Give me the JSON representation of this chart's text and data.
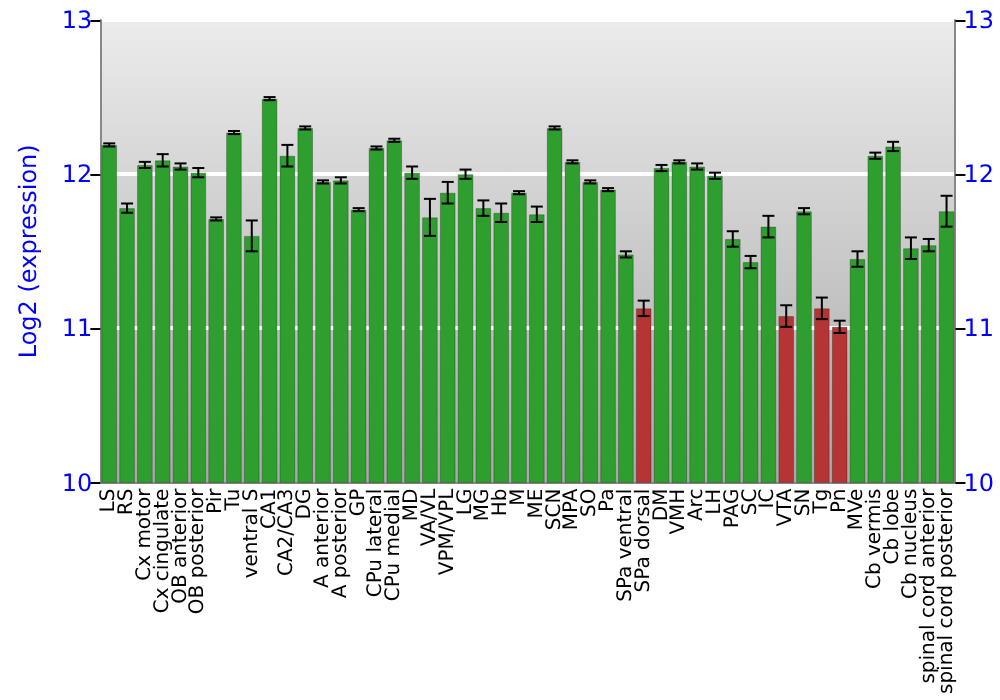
{
  "chart_data": {
    "type": "bar",
    "ylabel": "Log2 (expression)",
    "categories": [
      "LS",
      "RS",
      "Cx motor",
      "Cx cingulate",
      "OB anterior",
      "OB posterior",
      "Pir",
      "Tu",
      "ventral S",
      "CA1",
      "CA2/CA3",
      "DG",
      "A anterior",
      "A posterior",
      "GP",
      "CPu lateral",
      "CPu medial",
      "MD",
      "VA/VL",
      "VPM/VPL",
      "LG",
      "MG",
      "Hb",
      "M",
      "ME",
      "SCN",
      "MPA",
      "SO",
      "Pa",
      "SPa ventral",
      "SPa dorsal",
      "DM",
      "VMH",
      "Arc",
      "LH",
      "PAG",
      "SC",
      "IC",
      "VTA",
      "SN",
      "Tg",
      "Pn",
      "MVe",
      "Cb vermis",
      "Cb lobe",
      "Cb nucleus",
      "spinal cord anterior",
      "spinal cord posterior"
    ],
    "values": [
      12.19,
      11.78,
      12.06,
      12.09,
      12.05,
      12.01,
      11.71,
      12.27,
      11.6,
      12.49,
      12.12,
      12.3,
      11.95,
      11.96,
      11.77,
      12.17,
      12.22,
      12.01,
      11.72,
      11.88,
      12.0,
      11.78,
      11.75,
      11.88,
      11.74,
      12.3,
      12.08,
      11.95,
      11.9,
      11.48,
      11.13,
      12.04,
      12.08,
      12.05,
      11.99,
      11.58,
      11.43,
      11.66,
      11.08,
      11.76,
      11.13,
      11.01,
      11.45,
      12.12,
      12.18,
      11.52,
      11.54,
      11.76
    ],
    "errors": [
      0.01,
      0.03,
      0.02,
      0.04,
      0.02,
      0.03,
      0.01,
      0.01,
      0.1,
      0.01,
      0.07,
      0.01,
      0.01,
      0.02,
      0.01,
      0.01,
      0.01,
      0.04,
      0.12,
      0.07,
      0.03,
      0.05,
      0.06,
      0.01,
      0.05,
      0.01,
      0.01,
      0.01,
      0.01,
      0.02,
      0.05,
      0.02,
      0.01,
      0.02,
      0.02,
      0.05,
      0.04,
      0.07,
      0.07,
      0.02,
      0.07,
      0.04,
      0.05,
      0.02,
      0.03,
      0.07,
      0.04,
      0.1
    ],
    "colors": [
      "#2e9e2e",
      "#2e9e2e",
      "#2e9e2e",
      "#2e9e2e",
      "#2e9e2e",
      "#2e9e2e",
      "#2e9e2e",
      "#2e9e2e",
      "#2e9e2e",
      "#2e9e2e",
      "#2e9e2e",
      "#2e9e2e",
      "#2e9e2e",
      "#2e9e2e",
      "#2e9e2e",
      "#2e9e2e",
      "#2e9e2e",
      "#2e9e2e",
      "#2e9e2e",
      "#2e9e2e",
      "#2e9e2e",
      "#2e9e2e",
      "#2e9e2e",
      "#2e9e2e",
      "#2e9e2e",
      "#2e9e2e",
      "#2e9e2e",
      "#2e9e2e",
      "#2e9e2e",
      "#2e9e2e",
      "#b53535",
      "#2e9e2e",
      "#2e9e2e",
      "#2e9e2e",
      "#2e9e2e",
      "#2e9e2e",
      "#2e9e2e",
      "#2e9e2e",
      "#b53535",
      "#2e9e2e",
      "#b53535",
      "#b53535",
      "#2e9e2e",
      "#2e9e2e",
      "#2e9e2e",
      "#2e9e2e",
      "#2e9e2e",
      "#2e9e2e"
    ],
    "ylim": [
      10,
      13
    ],
    "yticks": [
      10,
      11,
      12,
      13
    ],
    "y2lim": [
      10,
      13
    ],
    "y2ticks": [
      10,
      11,
      12,
      13
    ],
    "grid": "y"
  }
}
